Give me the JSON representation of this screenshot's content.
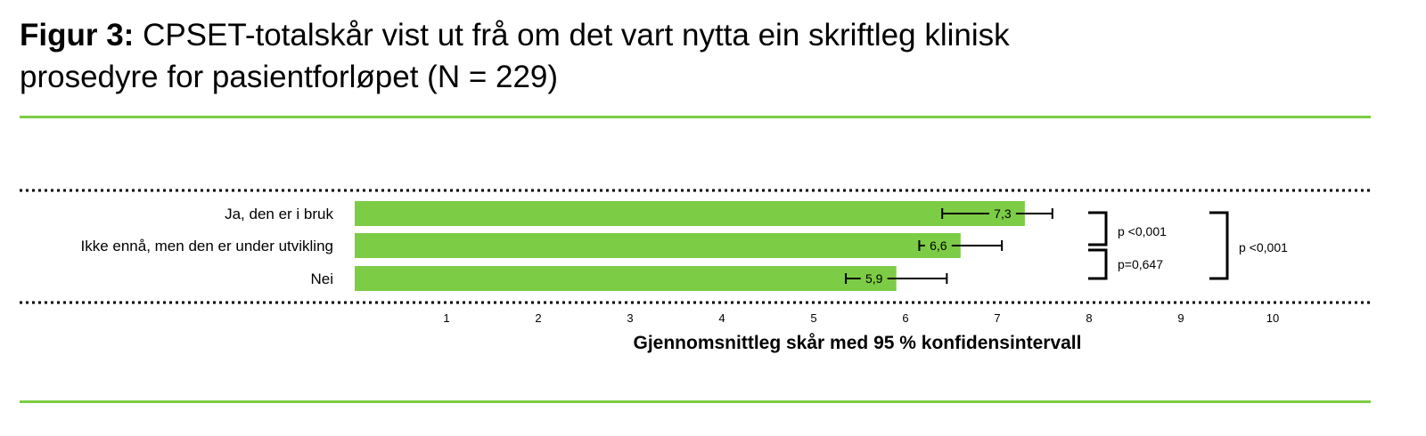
{
  "figure": {
    "title_lead": "Figur 3:",
    "title_rest": "CPSET-totalskår vist ut frå om det vart nytta ein skriftleg klinisk prosedyre for pasientforløpet (N = 229)"
  },
  "chart_data": {
    "type": "bar",
    "orientation": "horizontal",
    "categories": [
      "Ja, den er i bruk",
      "Ikke ennå, men den er under utvikling",
      "Nei"
    ],
    "values": [
      7.3,
      6.6,
      5.9
    ],
    "value_labels": [
      "7,3",
      "6,6",
      "5,9"
    ],
    "ci_low": [
      6.4,
      6.15,
      5.35
    ],
    "ci_high": [
      7.6,
      7.05,
      6.45
    ],
    "xlabel": "Gjennomsnittleg skår med 95 % konfidensintervall",
    "xlim": [
      0,
      11
    ],
    "xticks": [
      1,
      2,
      3,
      4,
      5,
      6,
      7,
      8,
      9,
      10
    ],
    "bar_color": "#7dcc45",
    "rule_color": "#7dcc45",
    "comparisons": [
      {
        "from": 0,
        "to": 1,
        "label": "p <0,001"
      },
      {
        "from": 1,
        "to": 2,
        "label": "p=0,647"
      },
      {
        "from": 0,
        "to": 2,
        "label": "p <0,001"
      }
    ]
  }
}
